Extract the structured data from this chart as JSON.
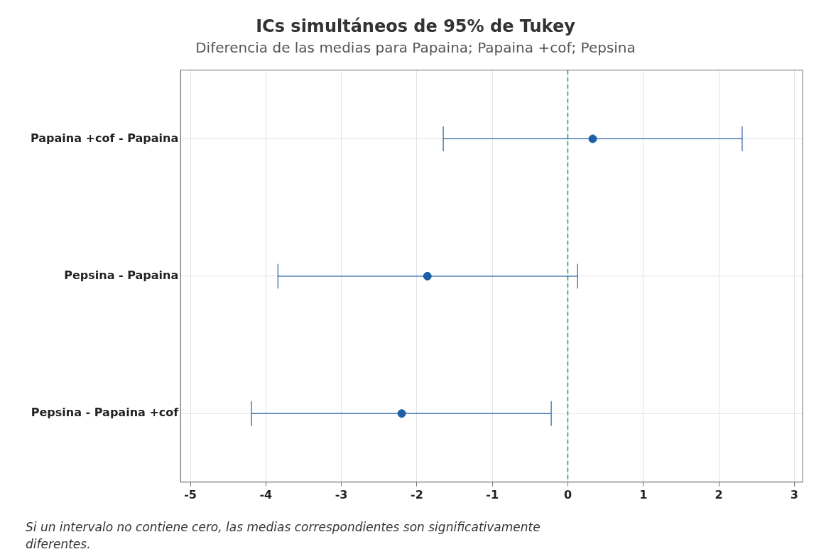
{
  "chart_data": {
    "type": "scatter",
    "orientation": "horizontal",
    "title": "ICs simultáneos de 95% de Tukey",
    "subtitle": "Diferencia de las medias para Papaina; Papaina +cof; Pepsina",
    "categories": [
      "Papaina +cof - Papaina",
      "Pepsina - Papaina",
      "Pepsina - Papaina +cof"
    ],
    "values": [
      0.33,
      -1.86,
      -2.2
    ],
    "errors": [
      [
        -1.65,
        2.31
      ],
      [
        -3.84,
        0.13
      ],
      [
        -4.19,
        -0.22
      ]
    ],
    "color": "#1f5fa8",
    "marker": "circle",
    "xlim": [
      -5.13,
      3.11
    ],
    "xticks": [
      -5,
      -4,
      -3,
      -2,
      -1,
      0,
      1,
      2,
      3
    ],
    "ref_lines": [
      {
        "axis": "x",
        "value": 0,
        "color": "#1a9e3a",
        "line_style": "dashed"
      }
    ],
    "grid": true,
    "legend": false,
    "annotations": [
      "Si un intervalo no contiene cero, las medias correspondientes son significativamente diferentes."
    ]
  }
}
